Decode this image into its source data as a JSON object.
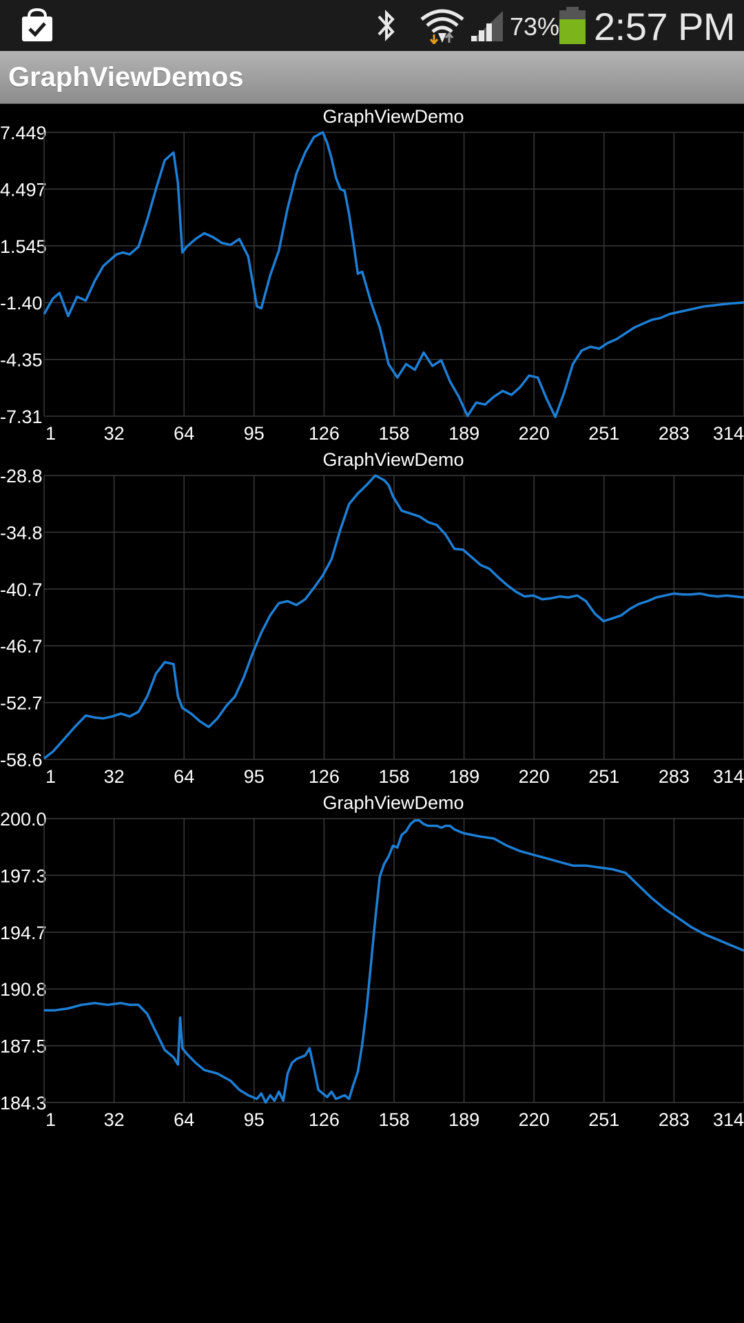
{
  "status_bar": {
    "battery_percent": "73%",
    "time": "2:57 PM",
    "battery_color": "#7cb51b",
    "icons": [
      "shopping-bag-icon",
      "bluetooth-icon",
      "wifi-icon",
      "signal-icon",
      "battery-icon"
    ]
  },
  "action_bar": {
    "title": "GraphViewDemos"
  },
  "accent_color": "#1d7fd6",
  "chart_data": [
    {
      "type": "line",
      "title": "GraphViewDemo",
      "x_ticks": [
        "1",
        "32",
        "64",
        "95",
        "126",
        "158",
        "189",
        "220",
        "251",
        "283",
        "314"
      ],
      "y_ticks": [
        "7.449",
        "4.497",
        "1.545",
        "-1.40",
        "-4.35",
        "-7.31"
      ],
      "xlim": [
        1,
        320
      ],
      "ylim": [
        -7.31,
        7.449
      ],
      "grid": true,
      "series": [
        {
          "x": [
            1,
            5,
            8,
            12,
            16,
            20,
            24,
            28,
            31,
            34,
            37,
            40,
            44,
            48,
            52,
            56,
            60,
            62,
            64,
            66,
            70,
            74,
            78,
            82,
            86,
            90,
            94,
            96,
            98,
            100,
            104,
            108,
            112,
            116,
            120,
            124,
            128,
            130,
            132,
            134,
            136,
            138,
            140,
            142,
            144,
            146,
            150,
            154,
            158,
            162,
            166,
            170,
            174,
            178,
            182,
            186,
            190,
            194,
            198,
            202,
            206,
            210,
            214,
            218,
            222,
            226,
            230,
            234,
            238,
            242,
            246,
            250,
            254,
            258,
            262,
            266,
            270,
            274,
            278,
            282,
            286,
            290,
            294,
            298,
            302,
            306,
            310,
            314,
            320
          ],
          "y": [
            -2.0,
            -1.2,
            -0.9,
            -2.1,
            -1.1,
            -1.3,
            -0.3,
            0.5,
            0.8,
            1.1,
            1.2,
            1.1,
            1.5,
            2.9,
            4.5,
            6.0,
            6.4,
            4.8,
            1.2,
            1.5,
            1.9,
            2.2,
            2.0,
            1.7,
            1.6,
            1.9,
            1.0,
            -0.3,
            -1.6,
            -1.7,
            0.0,
            1.3,
            3.5,
            5.3,
            6.4,
            7.2,
            7.45,
            6.9,
            6.1,
            5.1,
            4.5,
            4.4,
            3.2,
            1.7,
            0.1,
            0.2,
            -1.4,
            -2.7,
            -4.6,
            -5.3,
            -4.6,
            -4.9,
            -4.0,
            -4.7,
            -4.4,
            -5.5,
            -6.3,
            -7.3,
            -6.6,
            -6.7,
            -6.3,
            -6.0,
            -6.2,
            -5.8,
            -5.2,
            -5.3,
            -6.4,
            -7.35,
            -6.1,
            -4.6,
            -3.9,
            -3.7,
            -3.8,
            -3.5,
            -3.3,
            -3.0,
            -2.7,
            -2.5,
            -2.3,
            -2.2,
            -2.0,
            -1.9,
            -1.8,
            -1.7,
            -1.6,
            -1.55,
            -1.5,
            -1.45,
            -1.4
          ]
        }
      ]
    },
    {
      "type": "line",
      "title": "GraphViewDemo",
      "x_ticks": [
        "1",
        "32",
        "64",
        "95",
        "126",
        "158",
        "189",
        "220",
        "251",
        "283",
        "314"
      ],
      "y_ticks": [
        "-28.8",
        "-34.8",
        "-40.7",
        "-46.7",
        "-52.7",
        "-58.6"
      ],
      "xlim": [
        1,
        320
      ],
      "ylim": [
        -58.6,
        -28.8
      ],
      "grid": true,
      "series": [
        {
          "x": [
            1,
            5,
            10,
            15,
            20,
            24,
            28,
            32,
            36,
            40,
            44,
            48,
            52,
            56,
            60,
            62,
            64,
            68,
            72,
            76,
            80,
            84,
            88,
            92,
            96,
            100,
            104,
            108,
            112,
            116,
            120,
            124,
            128,
            132,
            136,
            140,
            144,
            148,
            152,
            156,
            158,
            160,
            164,
            168,
            172,
            176,
            180,
            184,
            188,
            192,
            196,
            200,
            204,
            208,
            212,
            216,
            220,
            224,
            228,
            232,
            236,
            240,
            244,
            248,
            252,
            256,
            260,
            264,
            268,
            272,
            276,
            280,
            284,
            288,
            292,
            296,
            300,
            304,
            308,
            312,
            316,
            320
          ],
          "y": [
            -58.5,
            -57.8,
            -56.5,
            -55.2,
            -54.0,
            -54.2,
            -54.3,
            -54.1,
            -53.8,
            -54.1,
            -53.6,
            -52.0,
            -49.6,
            -48.4,
            -48.6,
            -52.0,
            -53.2,
            -53.8,
            -54.6,
            -55.2,
            -54.3,
            -53.0,
            -52.0,
            -50.0,
            -47.5,
            -45.3,
            -43.5,
            -42.2,
            -42.0,
            -42.4,
            -41.8,
            -40.6,
            -39.3,
            -37.6,
            -34.5,
            -31.8,
            -30.7,
            -29.8,
            -28.8,
            -29.3,
            -29.8,
            -31.0,
            -32.5,
            -32.8,
            -33.1,
            -33.7,
            -34.0,
            -35.0,
            -36.5,
            -36.6,
            -37.4,
            -38.2,
            -38.6,
            -39.5,
            -40.3,
            -41.0,
            -41.5,
            -41.4,
            -41.8,
            -41.7,
            -41.5,
            -41.6,
            -41.4,
            -42.0,
            -43.3,
            -44.1,
            -43.8,
            -43.5,
            -42.8,
            -42.3,
            -42.0,
            -41.6,
            -41.4,
            -41.2,
            -41.3,
            -41.3,
            -41.2,
            -41.4,
            -41.5,
            -41.4,
            -41.5,
            -41.6
          ]
        }
      ]
    },
    {
      "type": "line",
      "title": "GraphViewDemo",
      "x_ticks": [
        "1",
        "32",
        "64",
        "95",
        "126",
        "158",
        "189",
        "220",
        "251",
        "283",
        "314"
      ],
      "y_ticks": [
        "200.0",
        "197.3",
        "194.7",
        "190.8",
        "187.5",
        "184.3"
      ],
      "xlim": [
        1,
        320
      ],
      "ylim": [
        184.3,
        200.0
      ],
      "grid": true,
      "series": [
        {
          "x": [
            1,
            6,
            12,
            18,
            24,
            30,
            36,
            40,
            44,
            48,
            52,
            56,
            60,
            62,
            63,
            64,
            66,
            70,
            74,
            80,
            86,
            90,
            94,
            98,
            100,
            102,
            104,
            106,
            108,
            110,
            112,
            114,
            116,
            118,
            120,
            122,
            124,
            126,
            128,
            130,
            132,
            134,
            136,
            138,
            140,
            142,
            144,
            146,
            148,
            150,
            152,
            154,
            156,
            158,
            160,
            162,
            164,
            166,
            168,
            170,
            172,
            174,
            176,
            178,
            180,
            182,
            184,
            186,
            188,
            190,
            192,
            196,
            200,
            206,
            212,
            218,
            224,
            230,
            236,
            242,
            248,
            254,
            260,
            266,
            272,
            278,
            284,
            290,
            296,
            302,
            308,
            314,
            320
          ],
          "y": [
            189.4,
            189.4,
            189.5,
            189.7,
            189.8,
            189.7,
            189.8,
            189.7,
            189.7,
            189.2,
            188.2,
            187.2,
            186.8,
            186.4,
            189.0,
            187.3,
            187.0,
            186.5,
            186.1,
            185.9,
            185.5,
            185.0,
            184.7,
            184.5,
            184.8,
            184.3,
            184.7,
            184.4,
            184.9,
            184.4,
            185.9,
            186.5,
            186.7,
            186.8,
            186.9,
            187.3,
            186.2,
            185.0,
            184.8,
            184.6,
            184.9,
            184.5,
            184.6,
            184.7,
            184.5,
            185.3,
            186.0,
            187.5,
            189.5,
            192.0,
            194.5,
            196.8,
            197.5,
            197.9,
            198.5,
            198.4,
            199.1,
            199.3,
            199.7,
            199.9,
            199.9,
            199.7,
            199.6,
            199.6,
            199.6,
            199.5,
            199.6,
            199.6,
            199.4,
            199.3,
            199.2,
            199.1,
            199.0,
            198.9,
            198.5,
            198.2,
            198.0,
            197.8,
            197.6,
            197.4,
            197.4,
            197.3,
            197.2,
            197.0,
            196.3,
            195.6,
            195.0,
            194.5,
            194.0,
            193.6,
            193.3,
            193.0,
            192.7
          ]
        }
      ]
    }
  ]
}
